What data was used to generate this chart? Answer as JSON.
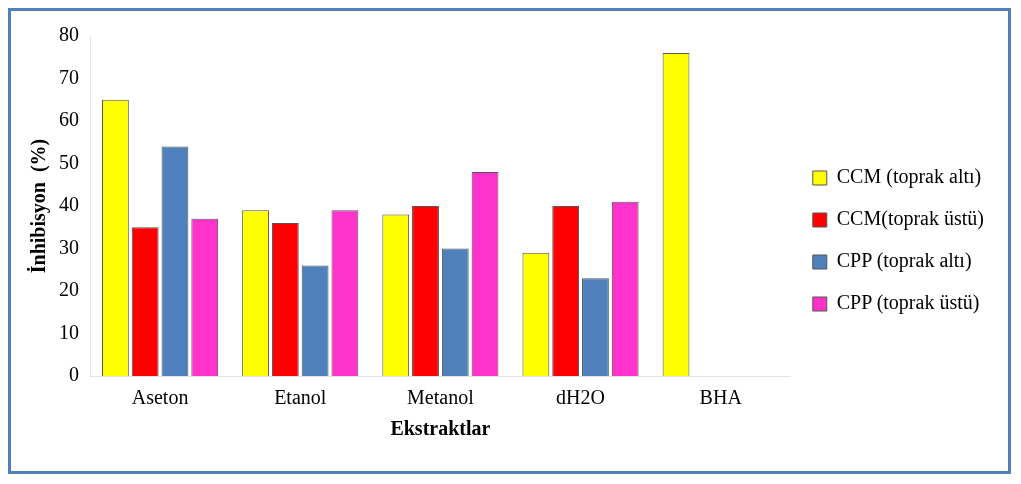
{
  "chart_data": {
    "type": "bar",
    "xlabel": "Ekstraktlar",
    "ylabel": "İnhibisyon  (%)",
    "categories": [
      "Aseton",
      "Etanol",
      "Metanol",
      "dH2O",
      "BHA"
    ],
    "series": [
      {
        "name": "CCM (toprak altı)",
        "color": "#ffff00",
        "values": [
          65,
          39,
          38,
          29,
          76
        ]
      },
      {
        "name": "CCM(toprak üstü)",
        "color": "#ff0000",
        "values": [
          35,
          36,
          40,
          40,
          null
        ]
      },
      {
        "name": "CPP (toprak altı)",
        "color": "#4f81bd",
        "values": [
          54,
          26,
          30,
          23,
          null
        ]
      },
      {
        "name": "CPP (toprak üstü)",
        "color": "#ff33cc",
        "values": [
          37,
          39,
          48,
          41,
          null
        ]
      }
    ],
    "ylim": [
      0,
      80
    ],
    "yticks": [
      0,
      10,
      20,
      30,
      40,
      50,
      60,
      70,
      80
    ],
    "grid": false,
    "legend": "right"
  }
}
